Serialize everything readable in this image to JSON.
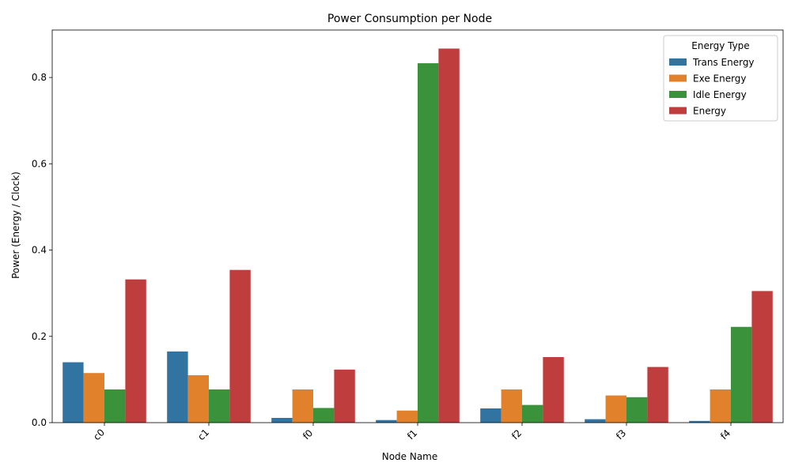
{
  "chart_data": {
    "type": "bar",
    "title": "Power Consumption per Node",
    "xlabel": "Node Name",
    "ylabel": "Power (Energy / Clock)",
    "categories": [
      "c0",
      "c1",
      "f0",
      "f1",
      "f2",
      "f3",
      "f4"
    ],
    "ylim": [
      0,
      0.91
    ],
    "yticks": [
      0.0,
      0.2,
      0.4,
      0.6,
      0.8
    ],
    "ytick_labels": [
      "0.0",
      "0.2",
      "0.4",
      "0.6",
      "0.8"
    ],
    "grid": false,
    "legend": {
      "title": "Energy Type",
      "placement": "top-right"
    },
    "series": [
      {
        "name": "Trans Energy",
        "color": "#3274a1",
        "values": [
          0.14,
          0.165,
          0.011,
          0.006,
          0.033,
          0.008,
          0.004
        ]
      },
      {
        "name": "Exe Energy",
        "color": "#e1812c",
        "values": [
          0.115,
          0.11,
          0.077,
          0.028,
          0.077,
          0.063,
          0.077
        ]
      },
      {
        "name": "Idle Energy",
        "color": "#3a923a",
        "values": [
          0.077,
          0.077,
          0.034,
          0.833,
          0.041,
          0.059,
          0.222
        ]
      },
      {
        "name": "Energy",
        "color": "#c03d3e",
        "values": [
          0.332,
          0.354,
          0.123,
          0.867,
          0.152,
          0.129,
          0.305
        ]
      }
    ]
  }
}
